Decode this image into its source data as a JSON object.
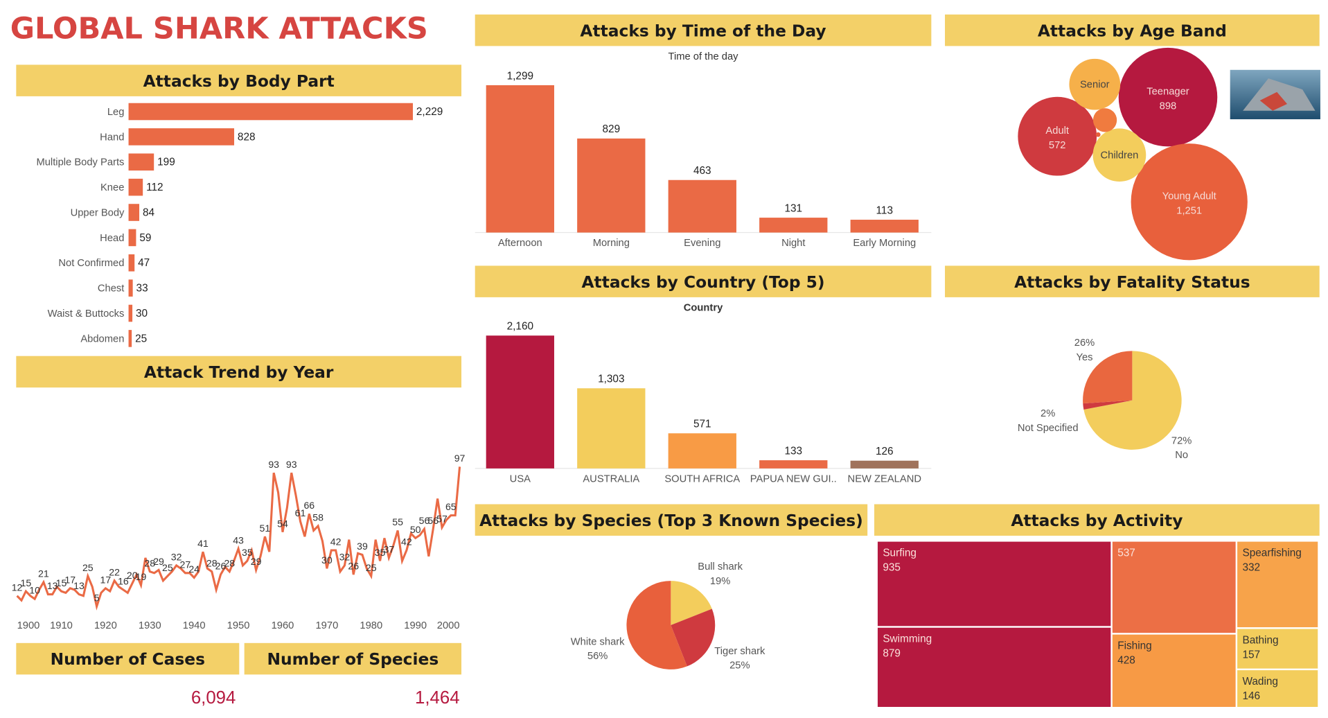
{
  "title": "GLOBAL SHARK ATTACKS",
  "kpis": [
    {
      "title": "Number of Cases",
      "value": "6,094"
    },
    {
      "title": "Number of Species",
      "value": "1,464"
    }
  ],
  "chart_data": [
    {
      "type": "bar",
      "orientation": "horizontal",
      "title": "Attacks by Body Part",
      "color": "#ea6a45",
      "categories": [
        "Leg",
        "Hand",
        "Multiple Body Parts",
        "Knee",
        "Upper Body",
        "Head",
        "Not Confirmed",
        "Chest",
        "Waist & Buttocks",
        "Abdomen"
      ],
      "values": [
        2229,
        828,
        199,
        112,
        84,
        59,
        47,
        33,
        30,
        25
      ],
      "value_labels": [
        "2,229",
        "828",
        "199",
        "112",
        "84",
        "59",
        "47",
        "33",
        "30",
        "25"
      ]
    },
    {
      "type": "line",
      "title": "Attack Trend by Year",
      "color": "#ea6a45",
      "x": [
        1900,
        1901,
        1902,
        1903,
        1904,
        1905,
        1906,
        1907,
        1908,
        1909,
        1910,
        1911,
        1912,
        1913,
        1914,
        1915,
        1916,
        1917,
        1918,
        1919,
        1920,
        1921,
        1922,
        1923,
        1924,
        1925,
        1926,
        1927,
        1928,
        1929,
        1930,
        1931,
        1932,
        1933,
        1934,
        1935,
        1936,
        1937,
        1938,
        1939,
        1940,
        1941,
        1942,
        1943,
        1944,
        1945,
        1946,
        1947,
        1948,
        1949,
        1950,
        1951,
        1952,
        1953,
        1954,
        1955,
        1956,
        1957,
        1958,
        1959,
        1960,
        1961,
        1962,
        1963,
        1964,
        1965,
        1966,
        1967,
        1968,
        1969,
        1970,
        1971,
        1972,
        1973,
        1974,
        1975,
        1976,
        1977,
        1978,
        1979,
        1980,
        1981,
        1982,
        1983,
        1984,
        1985,
        1986,
        1987,
        1988,
        1989,
        1990,
        1991,
        1992,
        1993,
        1994,
        1995,
        1996,
        1997,
        1998,
        1999,
        2000
      ],
      "values": [
        12,
        9,
        15,
        12,
        10,
        16,
        21,
        13,
        13,
        18,
        15,
        14,
        17,
        16,
        13,
        12,
        25,
        18,
        5,
        14,
        17,
        15,
        22,
        18,
        16,
        14,
        20,
        26,
        19,
        37,
        28,
        27,
        29,
        22,
        25,
        28,
        32,
        30,
        27,
        27,
        24,
        28,
        41,
        30,
        28,
        16,
        26,
        31,
        28,
        35,
        43,
        32,
        35,
        42,
        29,
        38,
        51,
        41,
        93,
        80,
        54,
        70,
        93,
        78,
        61,
        51,
        66,
        55,
        58,
        48,
        30,
        42,
        42,
        28,
        32,
        49,
        26,
        40,
        39,
        30,
        25,
        49,
        35,
        50,
        37,
        45,
        55,
        35,
        42,
        53,
        50,
        52,
        56,
        38,
        56,
        76,
        57,
        62,
        65,
        65,
        97
      ],
      "xlim": [
        1900,
        2000
      ],
      "xticks": [
        1900,
        1910,
        1920,
        1930,
        1940,
        1950,
        1960,
        1970,
        1980,
        1990,
        2000
      ]
    },
    {
      "type": "bar",
      "title": "Attacks by Time of the Day",
      "subtitle": "Time of the day",
      "color": "#ea6a45",
      "categories": [
        "Afternoon",
        "Morning",
        "Evening",
        "Night",
        "Early Morning"
      ],
      "values": [
        1299,
        829,
        463,
        131,
        113
      ],
      "value_labels": [
        "1,299",
        "829",
        "463",
        "131",
        "113"
      ]
    },
    {
      "type": "bar",
      "title": "Attacks by Country (Top 5)",
      "subtitle": "Country",
      "categories": [
        "USA",
        "AUSTRALIA",
        "SOUTH AFRICA",
        "PAPUA NEW GUI..",
        "NEW ZEALAND"
      ],
      "values": [
        2160,
        1303,
        571,
        133,
        126
      ],
      "value_labels": [
        "2,160",
        "1,303",
        "571",
        "133",
        "126"
      ],
      "colors": [
        "#b5193f",
        "#f3cd5c",
        "#f89b45",
        "#ea6a45",
        "#a0735c"
      ]
    },
    {
      "type": "bubble",
      "title": "Attacks by Age Band",
      "categories": [
        "Teenager",
        "Young Adult",
        "Adult",
        "Children",
        "Senior",
        null,
        null
      ],
      "values": [
        898,
        1251,
        572,
        260,
        240,
        52,
        2
      ],
      "value_labels": [
        "898",
        "1,251",
        "572",
        null,
        null,
        null,
        null
      ],
      "colors": [
        "#b5193f",
        "#e8603c",
        "#cf3a3f",
        "#f3cd5c",
        "#f6b04a",
        "#f07b3f",
        "#e8603c"
      ]
    },
    {
      "type": "pie",
      "title": "Attacks by Fatality Status",
      "categories": [
        "No",
        "Not Specified",
        "Yes"
      ],
      "values": [
        72,
        2,
        26
      ],
      "value_labels": [
        "72%",
        "2%",
        "26%"
      ],
      "colors": [
        "#f3cd5c",
        "#cf3a3f",
        "#e9673f"
      ]
    },
    {
      "type": "pie",
      "title": "Attacks by Species (Top 3 Known Species)",
      "categories": [
        "Bull shark",
        "Tiger shark",
        "White shark"
      ],
      "values": [
        19,
        25,
        56
      ],
      "value_labels": [
        "19%",
        "25%",
        "56%"
      ],
      "colors": [
        "#f3cd5c",
        "#cf3a3f",
        "#e8603c"
      ]
    },
    {
      "type": "treemap",
      "title": "Attacks by Activity",
      "categories": [
        "Surfing",
        "Swimming",
        null,
        "Fishing",
        "Spearfishing",
        "Bathing",
        "Wading"
      ],
      "values": [
        935,
        879,
        537,
        428,
        332,
        157,
        146
      ],
      "colors": [
        "#b5193f",
        "#b5193f",
        "#ec6f45",
        "#f79a45",
        "#f7a34a",
        "#f3cd5c",
        "#f3cd5c"
      ]
    }
  ]
}
